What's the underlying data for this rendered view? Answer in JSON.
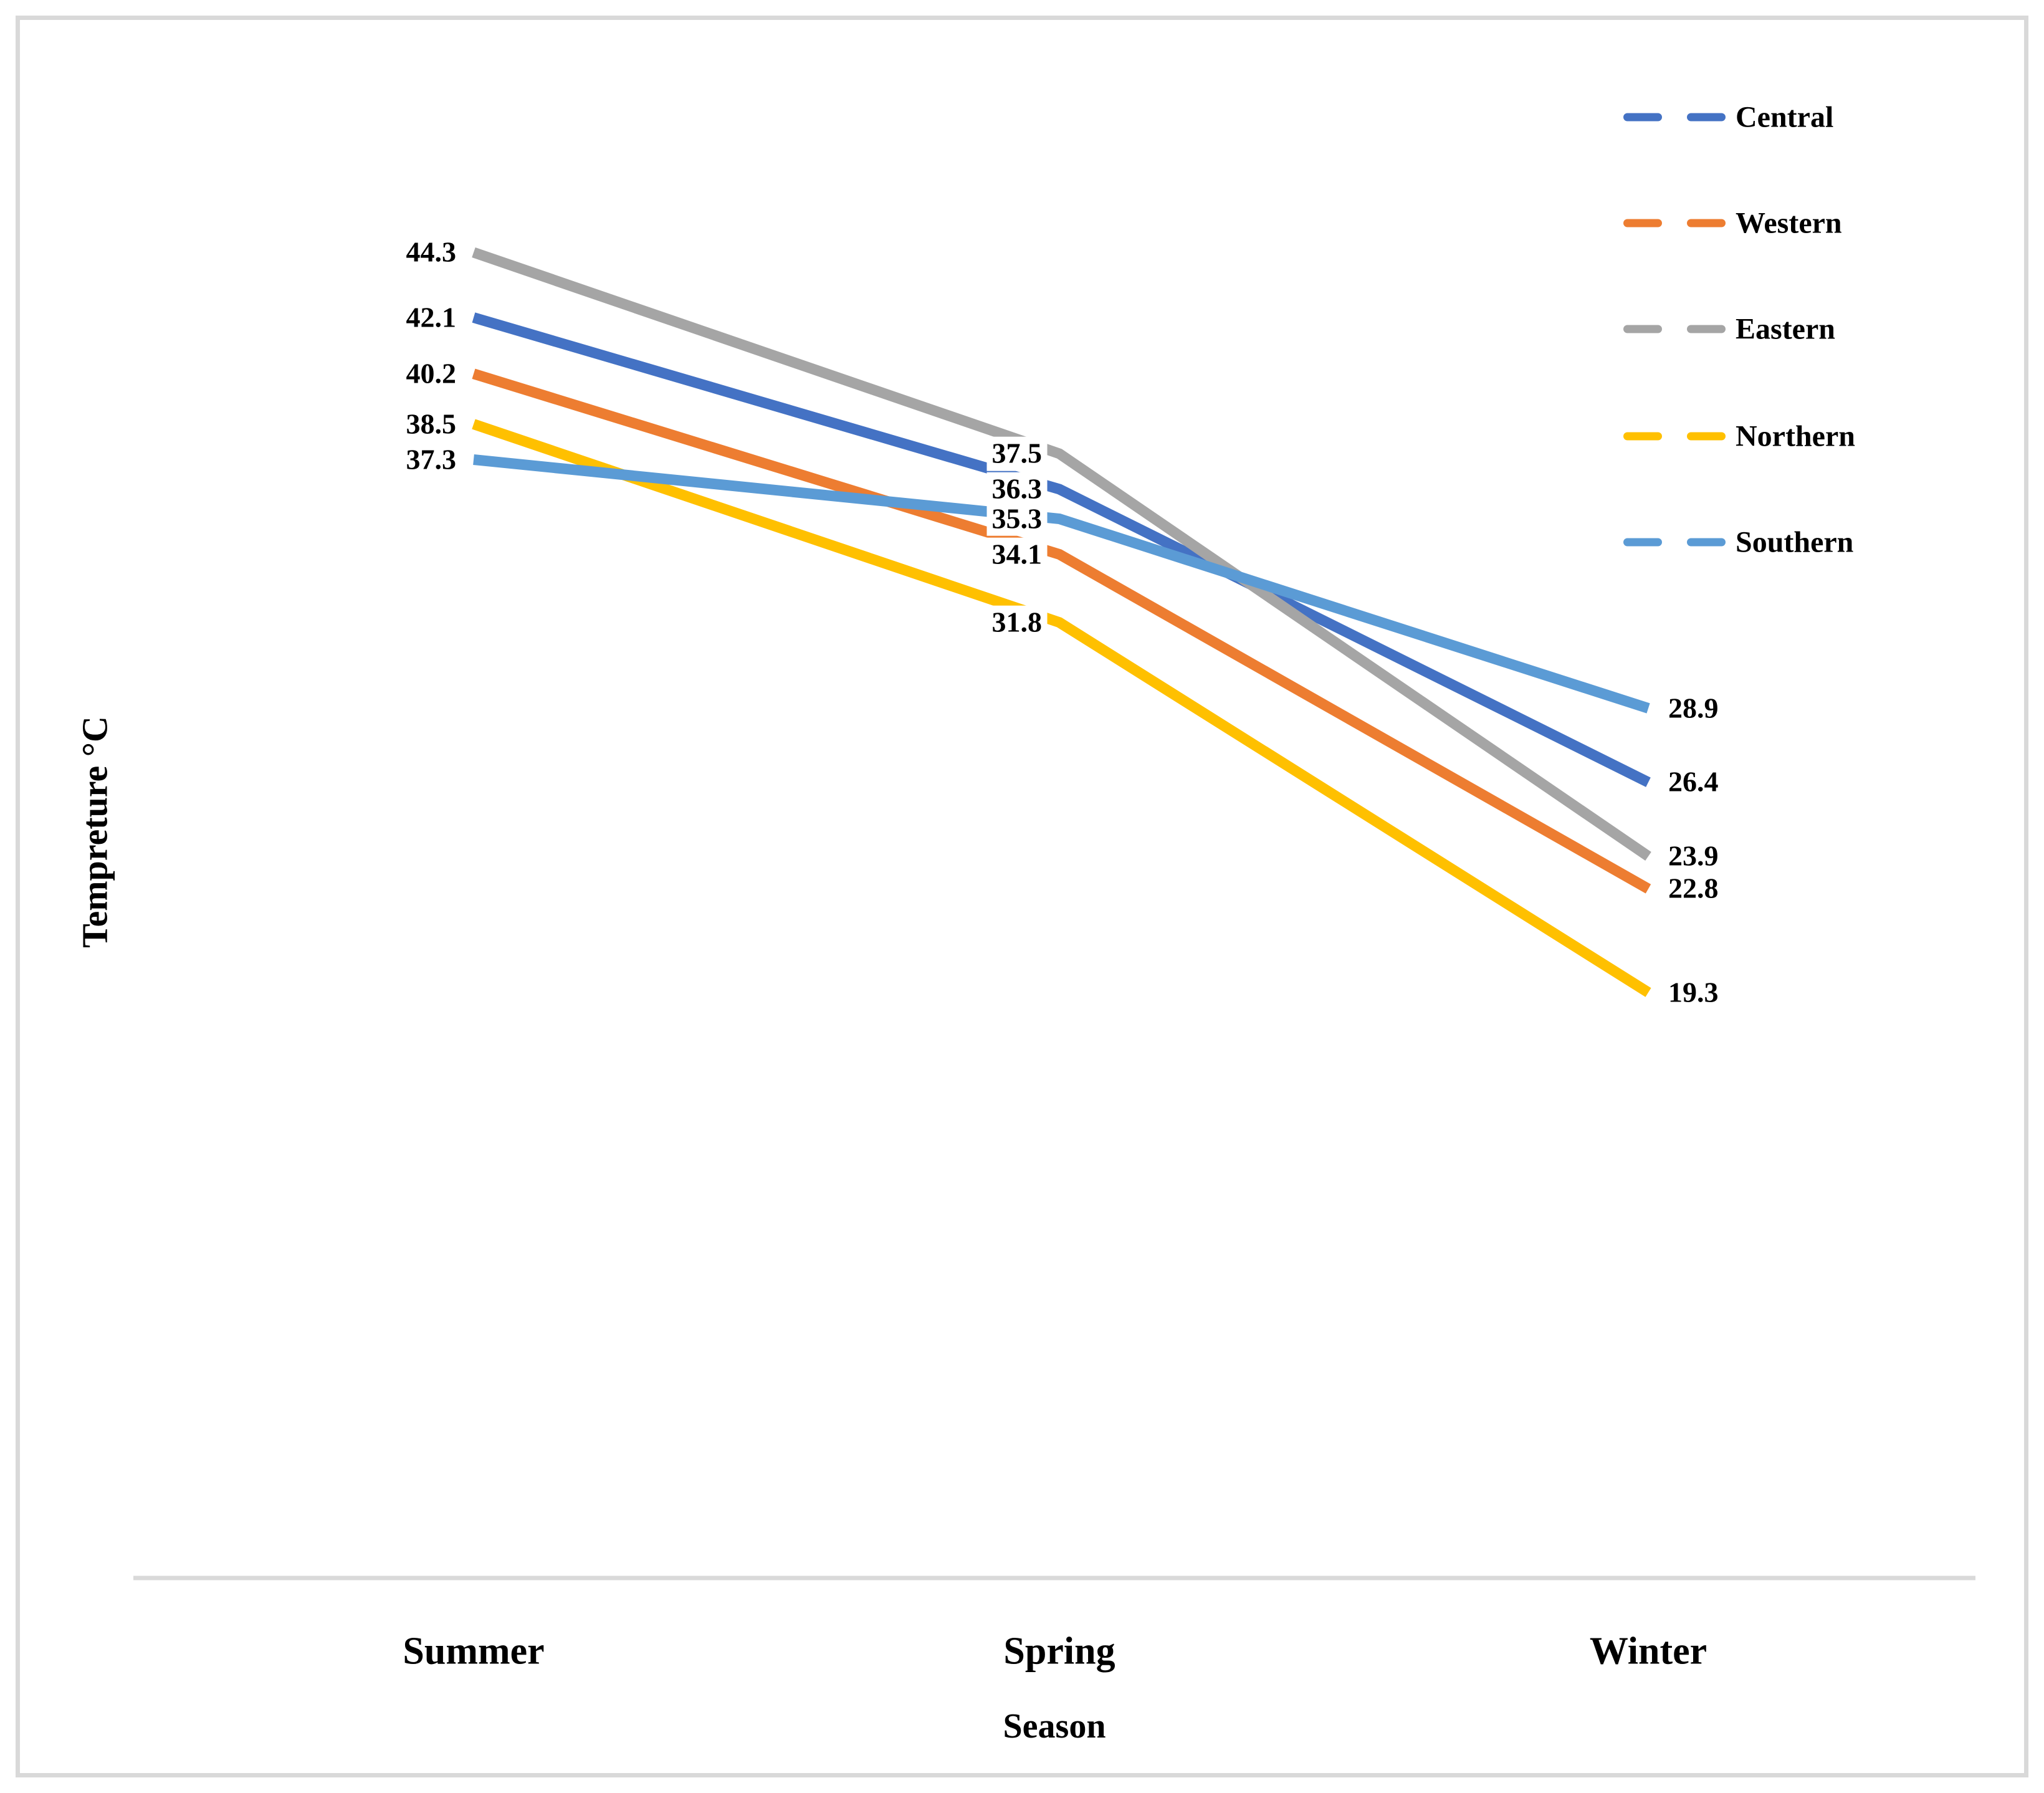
{
  "frame": {
    "border_color": "#D9D9D9"
  },
  "chart_data": {
    "type": "line",
    "title": "",
    "xlabel": "Season",
    "ylabel": "Tempreture °C",
    "categories": [
      "Summer",
      "Spring",
      "Winter"
    ],
    "series": [
      {
        "name": "Central",
        "color": "#4472C4",
        "values": [
          42.1,
          36.3,
          26.4
        ]
      },
      {
        "name": "Western",
        "color": "#ED7D31",
        "values": [
          40.2,
          34.1,
          22.8
        ]
      },
      {
        "name": "Eastern",
        "color": "#A5A5A5",
        "values": [
          44.3,
          37.5,
          23.9
        ]
      },
      {
        "name": "Northern",
        "color": "#FFC000",
        "values": [
          38.5,
          31.8,
          19.3
        ]
      },
      {
        "name": "Southern",
        "color": "#5B9BD5",
        "values": [
          37.3,
          35.3,
          28.9
        ]
      }
    ],
    "data_labels_visible": true,
    "data_label_positions": {
      "Summer": "left",
      "Spring": "left",
      "Winter": "right"
    },
    "legend_position": "top-right",
    "legend_entries": [
      "Central",
      "Western",
      "Eastern",
      "Northern",
      "Southern"
    ],
    "axis": {
      "x_axis_line_color": "#D9D9D9",
      "y_axis_labels_visible": false,
      "gridlines_visible": false,
      "y_min": 0,
      "y_max_approx": 52
    }
  }
}
